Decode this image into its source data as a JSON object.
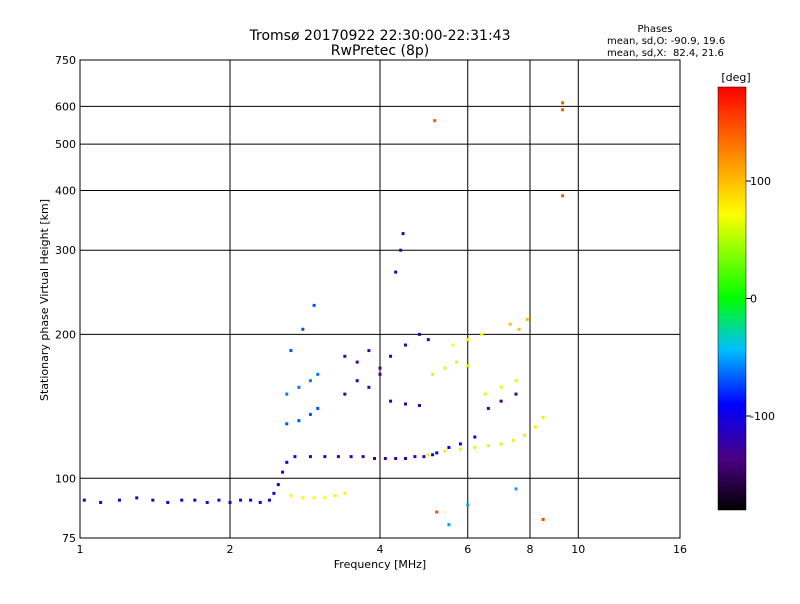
{
  "chart_data": {
    "type": "scatter",
    "title": "Tromsø 20170922 22:30:00-22:31:43",
    "subtitle": "RwPretec (8p)",
    "xlabel": "Frequency [MHz]",
    "ylabel": "Stationary phase Virtual Height [km]",
    "x_scale": "log",
    "y_scale": "log",
    "xlim": [
      1,
      16
    ],
    "ylim": [
      75,
      750
    ],
    "x_ticks": [
      1,
      2,
      4,
      6,
      8,
      10,
      16
    ],
    "y_ticks": [
      75,
      100,
      200,
      300,
      400,
      500,
      600,
      750
    ],
    "grid": true,
    "phase_box": {
      "heading": "Phases",
      "line_o": "mean, sd,O: -90.9, 19.6",
      "line_x": "mean, sd,X:  82.4, 21.6"
    },
    "colorbar": {
      "label": "[deg]",
      "range": [
        -180,
        180
      ],
      "tick_values": [
        100,
        0,
        -100
      ],
      "tick_labels": [
        "100",
        "0",
        "-100"
      ]
    },
    "traces": [
      {
        "name": "",
        "phase": -110,
        "x": [
          1.02,
          1.1,
          1.2,
          1.3,
          1.4,
          1.5,
          1.6,
          1.7,
          1.8,
          1.9,
          2.0,
          2.1,
          2.2,
          2.3,
          2.4
        ],
        "y": [
          90,
          89,
          90,
          91,
          90,
          89,
          90,
          90,
          89,
          90,
          89,
          90,
          90,
          89,
          90
        ]
      },
      {
        "name": "",
        "phase": -100,
        "x": [
          2.45,
          2.5,
          2.55,
          2.6
        ],
        "y": [
          93,
          97,
          103,
          108
        ]
      },
      {
        "name": "",
        "phase": -120,
        "x": [
          2.7,
          2.9,
          3.1,
          3.3,
          3.5,
          3.7,
          3.9,
          4.1,
          4.3,
          4.5,
          4.7,
          4.9,
          5.1
        ],
        "y": [
          111,
          111,
          111,
          111,
          111,
          111,
          110,
          110,
          110,
          110,
          111,
          111,
          112
        ]
      },
      {
        "name": "",
        "phase": -90,
        "x": [
          5.2,
          5.5,
          5.8,
          6.2
        ],
        "y": [
          113,
          116,
          118,
          122
        ]
      },
      {
        "name": "",
        "phase": 75,
        "x": [
          2.65,
          2.8,
          2.95,
          3.1,
          3.25,
          3.4
        ],
        "y": [
          92,
          91,
          91,
          91,
          92,
          93
        ]
      },
      {
        "name": "",
        "phase": 80,
        "x": [
          5.0,
          5.4,
          5.8,
          6.2,
          6.6,
          7.0,
          7.4,
          7.8,
          8.2,
          8.5
        ],
        "y": [
          112,
          114,
          115,
          116,
          117,
          118,
          120,
          123,
          128,
          134
        ]
      },
      {
        "name": "",
        "phase": -70,
        "x": [
          2.6,
          2.75,
          2.9,
          3.0
        ],
        "y": [
          130,
          132,
          136,
          140
        ]
      },
      {
        "name": "",
        "phase": -60,
        "x": [
          2.6,
          2.75,
          2.9,
          3.0
        ],
        "y": [
          150,
          155,
          160,
          165
        ]
      },
      {
        "name": "",
        "phase": -70,
        "x": [
          2.65,
          2.8,
          2.95
        ],
        "y": [
          185,
          205,
          230
        ]
      },
      {
        "name": "",
        "phase": -135,
        "x": [
          3.4,
          3.6,
          3.8,
          4.0
        ],
        "y": [
          180,
          175,
          185,
          170
        ]
      },
      {
        "name": "",
        "phase": -130,
        "x": [
          3.4,
          3.6,
          3.8,
          4.0
        ],
        "y": [
          150,
          160,
          155,
          165
        ]
      },
      {
        "name": "",
        "phase": -125,
        "x": [
          4.2,
          4.5,
          4.8
        ],
        "y": [
          145,
          143,
          142
        ]
      },
      {
        "name": "",
        "phase": -125,
        "x": [
          4.2,
          4.5,
          4.8,
          5.0
        ],
        "y": [
          180,
          190,
          200,
          195
        ]
      },
      {
        "name": "",
        "phase": -120,
        "x": [
          4.3,
          4.4,
          4.45
        ],
        "y": [
          270,
          300,
          325
        ]
      },
      {
        "name": "",
        "phase": 60,
        "x": [
          5.1,
          5.4,
          5.7,
          6.0
        ],
        "y": [
          165,
          170,
          175,
          172
        ]
      },
      {
        "name": "",
        "phase": 70,
        "x": [
          5.6,
          6.0,
          6.4
        ],
        "y": [
          190,
          195,
          200
        ]
      },
      {
        "name": "",
        "phase": 65,
        "x": [
          6.5,
          7.0,
          7.5
        ],
        "y": [
          150,
          155,
          160
        ]
      },
      {
        "name": "",
        "phase": 100,
        "x": [
          7.3,
          7.6,
          7.9
        ],
        "y": [
          210,
          205,
          215
        ]
      },
      {
        "name": "",
        "phase": -140,
        "x": [
          6.6,
          7.0,
          7.5
        ],
        "y": [
          140,
          145,
          150
        ]
      },
      {
        "name": "",
        "phase": 145,
        "x": [
          5.15,
          9.3,
          9.3,
          9.3
        ],
        "y": [
          560,
          590,
          610,
          390
        ]
      },
      {
        "name": "",
        "phase": 150,
        "x": [
          5.2,
          8.5
        ],
        "y": [
          85,
          82
        ]
      },
      {
        "name": "",
        "phase": -50,
        "x": [
          5.5,
          6.0,
          7.5
        ],
        "y": [
          80,
          88,
          95
        ]
      }
    ]
  }
}
